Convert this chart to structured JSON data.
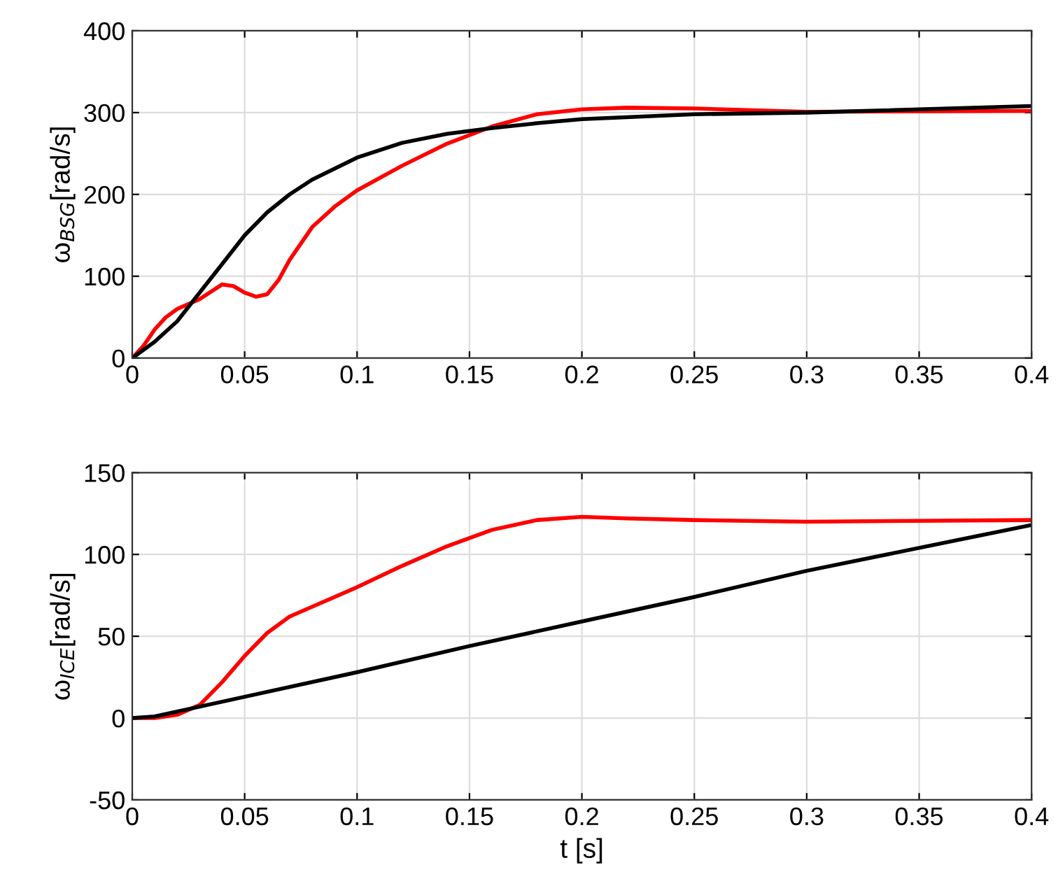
{
  "chart_data": [
    {
      "type": "line",
      "ylabel": "ω$_{BSG}$[rad/s]",
      "xlim": [
        0,
        0.4
      ],
      "xticks": [
        0,
        0.05,
        0.1,
        0.15,
        0.2,
        0.25,
        0.3,
        0.35,
        0.4
      ],
      "ylim": [
        0,
        400
      ],
      "yticks": [
        0,
        100,
        200,
        300,
        400
      ],
      "grid": true,
      "series": [
        {
          "color": "#ff0000",
          "x": [
            0,
            0.005,
            0.01,
            0.015,
            0.02,
            0.03,
            0.04,
            0.045,
            0.05,
            0.055,
            0.06,
            0.065,
            0.07,
            0.08,
            0.09,
            0.1,
            0.12,
            0.14,
            0.16,
            0.18,
            0.2,
            0.22,
            0.25,
            0.3,
            0.4
          ],
          "values": [
            0,
            15,
            35,
            50,
            60,
            72,
            90,
            88,
            80,
            75,
            78,
            95,
            120,
            160,
            185,
            205,
            235,
            262,
            283,
            298,
            304,
            306,
            305,
            301,
            302
          ]
        },
        {
          "color": "#000000",
          "x": [
            0,
            0.005,
            0.01,
            0.02,
            0.03,
            0.04,
            0.05,
            0.06,
            0.07,
            0.08,
            0.1,
            0.12,
            0.14,
            0.16,
            0.18,
            0.2,
            0.25,
            0.3,
            0.4
          ],
          "values": [
            0,
            10,
            20,
            45,
            80,
            115,
            150,
            178,
            200,
            218,
            245,
            263,
            274,
            281,
            287,
            292,
            298,
            300,
            308
          ]
        }
      ]
    },
    {
      "type": "line",
      "xlabel": "t [s]",
      "ylabel": "ω$_{ICE}$[rad/s]",
      "xlim": [
        0,
        0.4
      ],
      "xticks": [
        0,
        0.05,
        0.1,
        0.15,
        0.2,
        0.25,
        0.3,
        0.35,
        0.4
      ],
      "ylim": [
        -50,
        150
      ],
      "yticks": [
        -50,
        0,
        50,
        100,
        150
      ],
      "grid": true,
      "series": [
        {
          "color": "#ff0000",
          "x": [
            0,
            0.01,
            0.02,
            0.03,
            0.04,
            0.05,
            0.06,
            0.07,
            0.08,
            0.1,
            0.12,
            0.14,
            0.16,
            0.18,
            0.2,
            0.22,
            0.25,
            0.3,
            0.4
          ],
          "values": [
            0,
            0,
            2,
            8,
            22,
            38,
            52,
            62,
            68,
            80,
            93,
            105,
            115,
            121,
            123,
            122,
            121,
            120,
            121
          ]
        },
        {
          "color": "#000000",
          "x": [
            0,
            0.01,
            0.02,
            0.05,
            0.1,
            0.15,
            0.2,
            0.25,
            0.3,
            0.4
          ],
          "values": [
            0,
            1,
            4,
            13,
            28,
            44,
            59,
            74,
            90,
            118
          ]
        }
      ]
    }
  ]
}
